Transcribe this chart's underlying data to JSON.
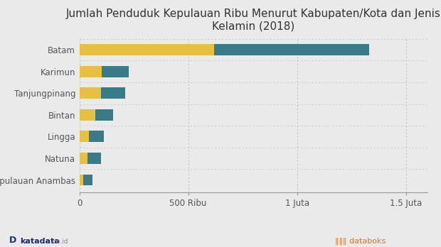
{
  "title": "Jumlah Penduduk Kepulauan Ribu Menurut Kabupaten/Kota dan Jenis\nKelamin (2018)",
  "categories": [
    "Batam",
    "Karimun",
    "Tanjungpinang",
    "Bintan",
    "Lingga",
    "Natuna",
    "Kepulauan Anambas"
  ],
  "perempuan": [
    620000,
    102000,
    100000,
    73000,
    43000,
    38000,
    18000
  ],
  "laki_laki": [
    710000,
    125000,
    110000,
    82000,
    68000,
    62000,
    42000
  ],
  "color_perempuan": "#E8C040",
  "color_laki_laki": "#3A7B8A",
  "background_color": "#EAEAEA",
  "plot_background": "#EAEAEA",
  "xlim": [
    0,
    1600000
  ],
  "xticks": [
    0,
    500000,
    1000000,
    1500000
  ],
  "xticklabels": [
    "0",
    "500 Ribu",
    "1 Juta",
    "1.5 Juta"
  ],
  "title_fontsize": 11,
  "tick_fontsize": 8.5,
  "bar_height": 0.52
}
